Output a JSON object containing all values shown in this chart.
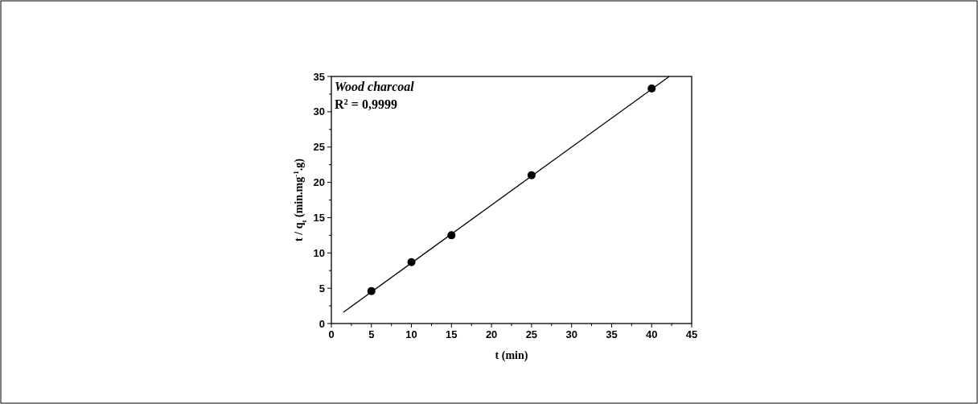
{
  "chart_data": {
    "type": "scatter",
    "xlabel": "t (min)",
    "ylabel": "t / q$_{t}$ (min.mg$^{-1}$.g)",
    "x": [
      5,
      10,
      15,
      25,
      40
    ],
    "series": [
      {
        "color": "#000000",
        "values": [
          4.6,
          8.7,
          12.5,
          21.0,
          33.3
        ],
        "marker": "circle"
      },
      {
        "type": "line",
        "color": "#000000",
        "x": [
          1.5,
          42.2
        ],
        "values": [
          1.6,
          35
        ],
        "line_style": "solid"
      }
    ],
    "xlim": [
      0,
      45
    ],
    "ylim": [
      0,
      35
    ],
    "xticks": [
      0,
      {
        "value": 2.5,
        "label": null
      },
      5,
      {
        "value": 7.5,
        "label": null
      },
      10,
      {
        "value": 12.5,
        "label": null
      },
      15,
      {
        "value": 17.5,
        "label": null
      },
      20,
      {
        "value": 22.5,
        "label": null
      },
      25,
      {
        "value": 27.5,
        "label": null
      },
      30,
      {
        "value": 32.5,
        "label": null
      },
      35,
      {
        "value": 37.5,
        "label": null
      },
      40,
      {
        "value": 42.5,
        "label": null
      },
      45
    ],
    "yticks": [
      0,
      {
        "value": 2.5,
        "label": null
      },
      5,
      {
        "value": 7.5,
        "label": null
      },
      10,
      {
        "value": 12.5,
        "label": null
      },
      15,
      {
        "value": 17.5,
        "label": null
      },
      20,
      {
        "value": 22.5,
        "label": null
      },
      25,
      {
        "value": 27.5,
        "label": null
      },
      30,
      {
        "value": 32.5,
        "label": null
      },
      35
    ],
    "annotations": [
      "Wood charcoal",
      "R$^{2}$ = 0,9999"
    ],
    "grid": false
  }
}
